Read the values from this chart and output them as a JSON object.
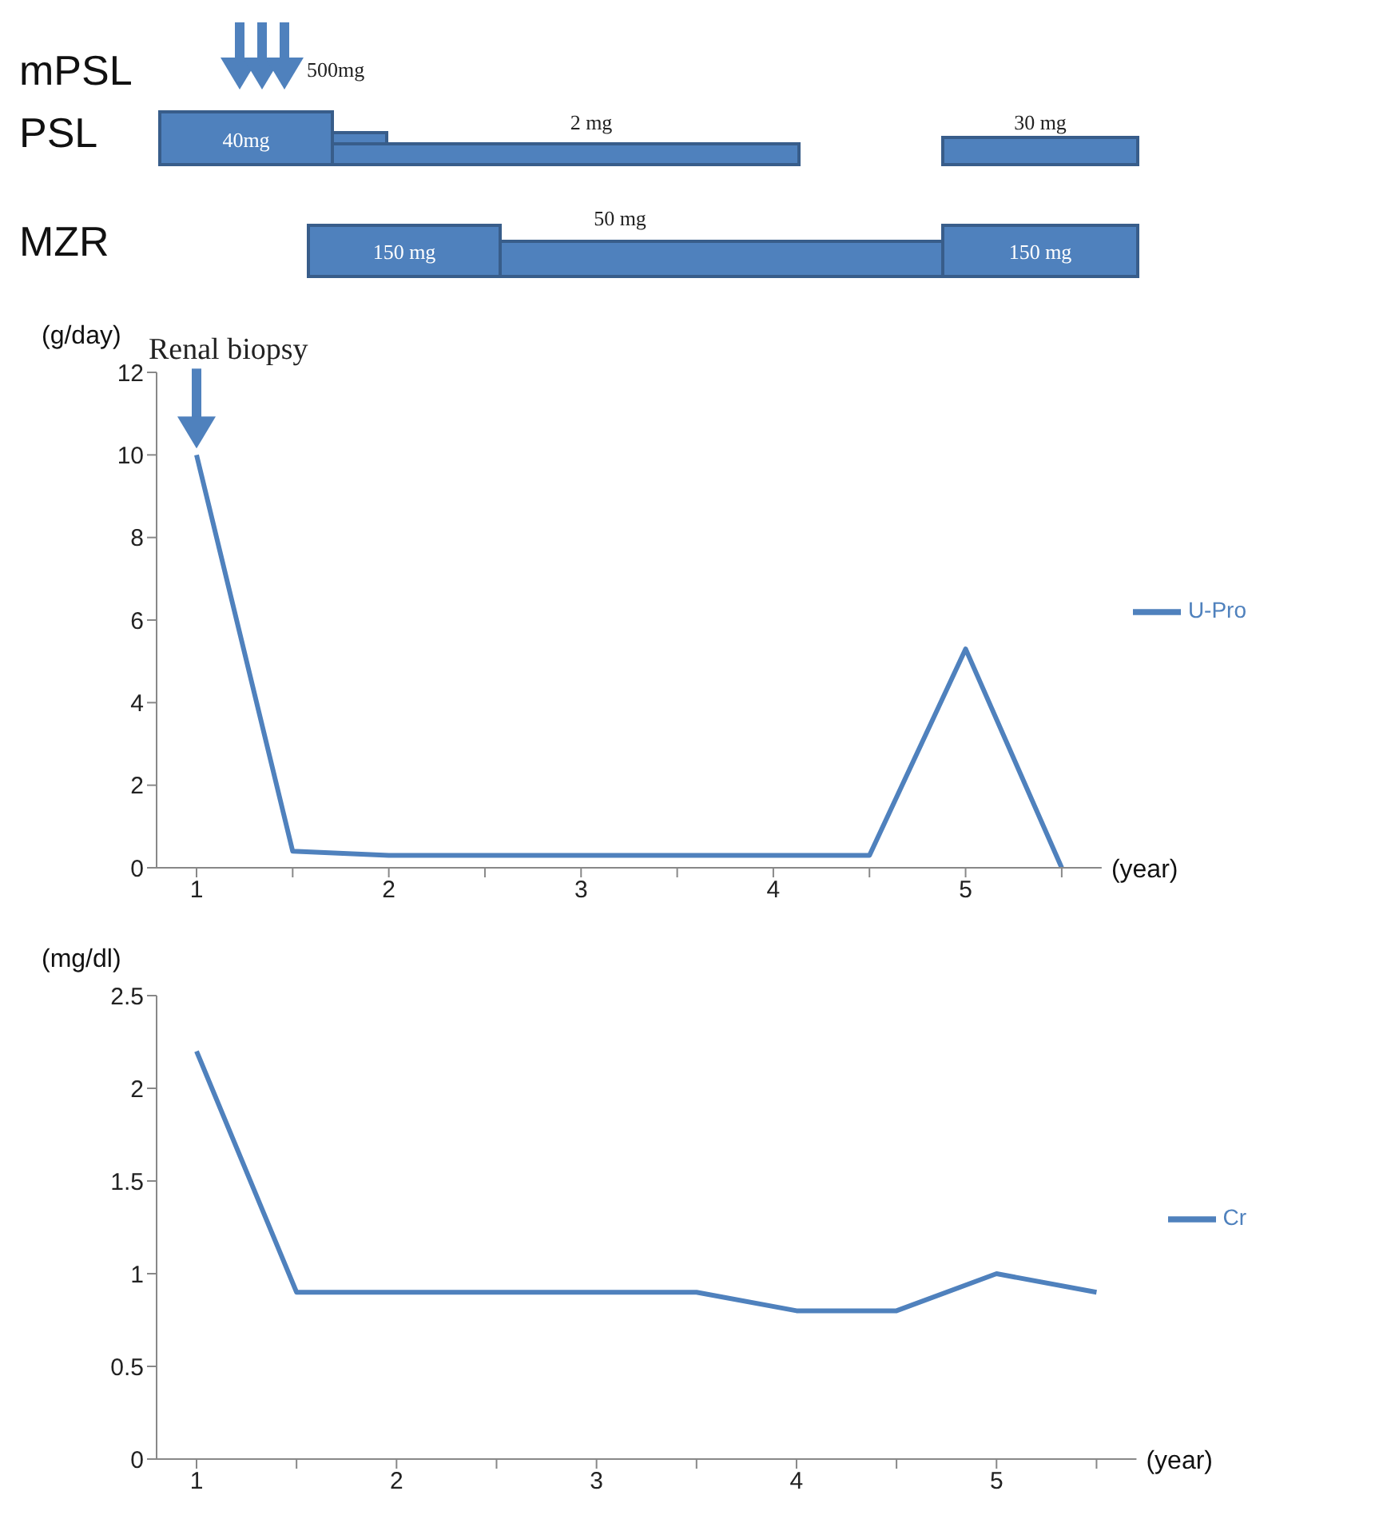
{
  "chart_data": [
    {
      "type": "other",
      "categories": [
        "mPSL",
        "PSL",
        "MZR"
      ],
      "annotations": [
        "500mg",
        "40mg",
        "2 mg",
        "30 mg",
        "150 mg",
        "50 mg",
        "150 mg"
      ]
    },
    {
      "type": "line",
      "categories": [
        "1",
        null,
        "2",
        null,
        "3",
        null,
        "4",
        null,
        "5",
        null
      ],
      "series": [
        {
          "name": "U-Pro",
          "color": "#4f81bd",
          "values": [
            10,
            0.4,
            0.3,
            0.3,
            0.3,
            0.3,
            0.3,
            0.3,
            5.3,
            0
          ]
        }
      ],
      "ylim": [
        0,
        12
      ],
      "yticks": [
        0,
        2,
        4,
        6,
        8,
        10,
        12
      ],
      "ylabel": "(g/day)",
      "xlabel": "(year)",
      "legend": "right",
      "marker": "none",
      "line_style": "solid",
      "annotations": [
        {
          "text": "Renal biopsy",
          "x": "1",
          "y": 10
        }
      ]
    },
    {
      "type": "line",
      "categories": [
        "1",
        null,
        "2",
        null,
        "3",
        null,
        "4",
        null,
        "5",
        null
      ],
      "series": [
        {
          "name": "Cr",
          "color": "#4f81bd",
          "values": [
            2.2,
            0.9,
            0.9,
            0.9,
            0.9,
            0.9,
            0.8,
            0.8,
            1.0,
            0.9
          ]
        }
      ],
      "ylim": [
        0,
        2.5
      ],
      "yticks": [
        0,
        0.5,
        1,
        1.5,
        2,
        2.5
      ],
      "ylabel": "(mg/dl)",
      "xlabel": "(year)",
      "legend": "right",
      "marker": "none",
      "line_style": "solid"
    }
  ]
}
